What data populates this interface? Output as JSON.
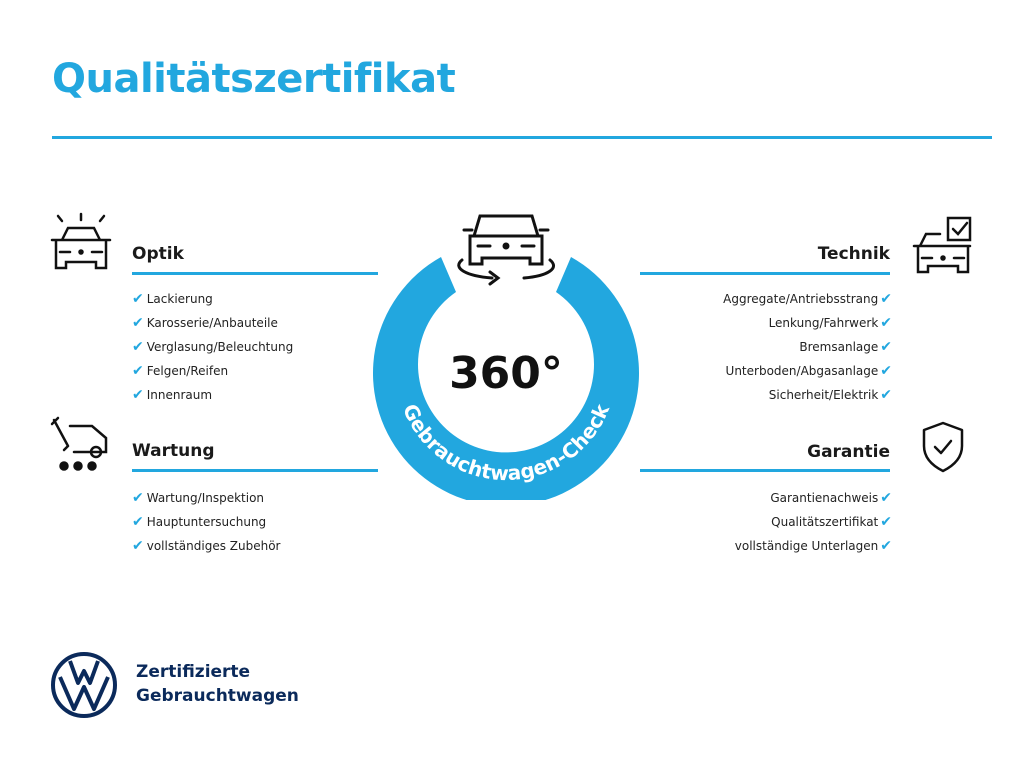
{
  "title": "Qualitätszertifikat",
  "colors": {
    "accent": "#22a7df",
    "brand": "#0b2a5b",
    "text": "#1a1a1a"
  },
  "center": {
    "value": "360°",
    "ring_text": "Gebrauchtwagen-Check",
    "icon": "car-rotate-360-icon"
  },
  "sections": {
    "optik": {
      "title": "Optik",
      "icon": "car-lights-icon",
      "items": [
        "Lackierung",
        "Karosserie/Anbauteile",
        "Verglasung/Beleuchtung",
        "Felgen/Reifen",
        "Innenraum"
      ]
    },
    "wartung": {
      "title": "Wartung",
      "icon": "service-van-wrench-icon",
      "items": [
        "Wartung/Inspektion",
        "Hauptuntersuchung",
        "vollständiges Zubehör"
      ]
    },
    "technik": {
      "title": "Technik",
      "icon": "car-checkbox-icon",
      "items": [
        "Aggregate/Antriebsstrang",
        "Lenkung/Fahrwerk",
        "Bremsanlage",
        "Unterboden/Abgasanlage",
        "Sicherheit/Elektrik"
      ]
    },
    "garantie": {
      "title": "Garantie",
      "icon": "shield-check-icon",
      "items": [
        "Garantienachweis",
        "Qualitätszertifikat",
        "vollständige Unterlagen"
      ]
    }
  },
  "check_icon": "✔",
  "footer": {
    "logo": "VW",
    "line1": "Zertifizierte",
    "line2": "Gebrauchtwagen"
  }
}
